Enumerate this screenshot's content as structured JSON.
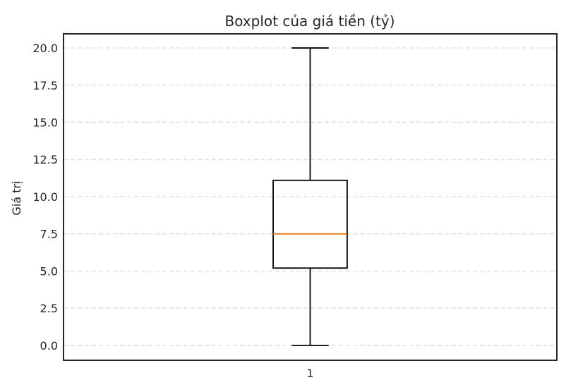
{
  "chart_data": {
    "type": "boxplot",
    "title": "Boxplot của giá tiền (tỷ)",
    "xlabel": "",
    "ylabel": "Giá trị",
    "categories": [
      "1"
    ],
    "boxes": [
      {
        "category": "1",
        "min": 0.0,
        "q1": 5.2,
        "median": 7.5,
        "q3": 11.1,
        "max": 20.0,
        "outliers": []
      }
    ],
    "ylim": [
      -1.0,
      20.95
    ],
    "yticks": [
      0.0,
      2.5,
      5.0,
      7.5,
      10.0,
      12.5,
      15.0,
      17.5,
      20.0
    ],
    "ytick_labels": [
      "0.0",
      "2.5",
      "5.0",
      "7.5",
      "10.0",
      "12.5",
      "15.0",
      "17.5",
      "20.0"
    ],
    "grid": {
      "y": true,
      "x": false,
      "style": "dashed"
    },
    "colors": {
      "box": "#000000",
      "median": "#e87d1e",
      "grid": "#d9d9d9",
      "frame": "#262626",
      "text": "#262626"
    }
  }
}
